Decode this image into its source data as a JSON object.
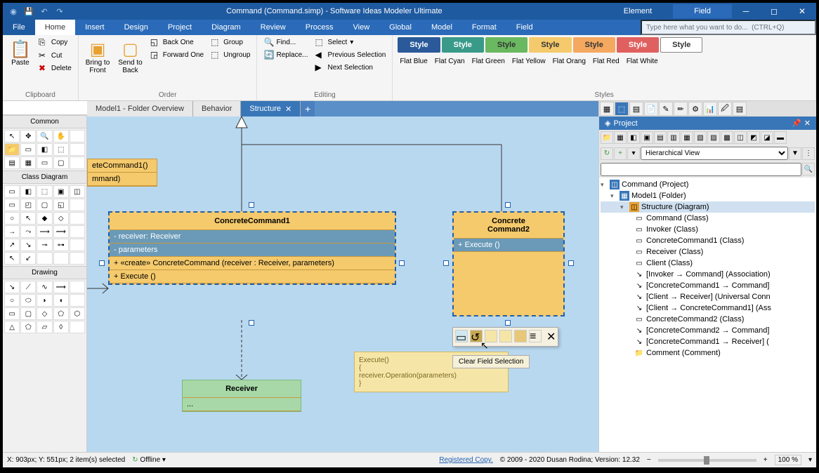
{
  "titlebar": {
    "title": "Command (Command.simp)  - Software Ideas Modeler Ultimate",
    "tab_element": "Element",
    "tab_field": "Field"
  },
  "menu": {
    "file": "File",
    "home": "Home",
    "insert": "Insert",
    "design": "Design",
    "project": "Project",
    "diagram": "Diagram",
    "review": "Review",
    "process": "Process",
    "view": "View",
    "global": "Global",
    "model": "Model",
    "format": "Format",
    "field": "Field",
    "search_placeholder": "Type here what you want to do...  (CTRL+Q)"
  },
  "ribbon": {
    "clipboard": {
      "label": "Clipboard",
      "paste": "Paste",
      "copy": "Copy",
      "cut": "Cut",
      "delete": "Delete"
    },
    "order": {
      "label": "Order",
      "bring_front": "Bring to\nFront",
      "send_back": "Send to\nBack",
      "back_one": "Back One",
      "forward_one": "Forward One",
      "group": "Group",
      "ungroup": "Ungroup"
    },
    "editing": {
      "label": "Editing",
      "find": "Find...",
      "replace": "Replace...",
      "select": "Select",
      "prev_sel": "Previous Selection",
      "next_sel": "Next Selection"
    },
    "styles": {
      "label": "Styles",
      "items": [
        {
          "text": "Style",
          "bg": "#2a5a9a",
          "fg": "#fff",
          "name": "Flat Blue"
        },
        {
          "text": "Style",
          "bg": "#3a9a8a",
          "fg": "#fff",
          "name": "Flat Cyan"
        },
        {
          "text": "Style",
          "bg": "#6ab860",
          "fg": "#333",
          "name": "Flat Green"
        },
        {
          "text": "Style",
          "bg": "#f5ca6c",
          "fg": "#333",
          "name": "Flat Yellow"
        },
        {
          "text": "Style",
          "bg": "#f5a860",
          "fg": "#333",
          "name": "Flat Orang"
        },
        {
          "text": "Style",
          "bg": "#e06060",
          "fg": "#fff",
          "name": "Flat Red"
        },
        {
          "text": "Style",
          "bg": "#ffffff",
          "fg": "#333",
          "name": "Flat White"
        }
      ]
    }
  },
  "leftpanel": {
    "common": "Common",
    "class_diagram": "Class Diagram",
    "drawing": "Drawing"
  },
  "tabs": {
    "model1": "Model1 - Folder Overview",
    "behavior": "Behavior",
    "structure": "Structure"
  },
  "canvas": {
    "partial": {
      "line1": "eteCommand1()",
      "line2": "mmand)"
    },
    "cc1": {
      "title": "ConcreteCommand1",
      "r1": "- receiver: Receiver",
      "r2": "- parameters",
      "r3": "+ «create» ConcreteCommand (receiver : Receiver, parameters)",
      "r4": "+ Execute ()"
    },
    "cc2": {
      "title": "Concrete\nCommand2",
      "r1": "+ Execute ()"
    },
    "receiver": {
      "title": "Receiver",
      "dots": "..."
    },
    "note": {
      "l1": "Execute()",
      "l2": "{",
      "l3": "    receiver.Operation(parameters)",
      "l4": "}"
    },
    "tooltip": "Clear Field Selection"
  },
  "project": {
    "title": "Project",
    "view_mode": "Hierarchical View",
    "tree": {
      "root": "Command (Project)",
      "model1": "Model1 (Folder)",
      "structure": "Structure (Diagram)",
      "items": [
        "Command (Class)",
        "Invoker (Class)",
        "ConcreteCommand1 (Class)",
        "Receiver (Class)",
        "Client (Class)",
        "[Invoker → Command] (Association)",
        "[ConcreteCommand1 → Command]",
        "[Client → Receiver] (Universal Conn",
        "[Client → ConcreteCommand1] (Ass",
        "ConcreteCommand2 (Class)",
        "[ConcreteCommand2 → Command]",
        "[ConcreteCommand1 → Receiver] (",
        "Comment (Comment)"
      ]
    }
  },
  "status": {
    "coords": "X: 903px; Y: 551px; 2 item(s) selected",
    "offline": "Offline",
    "registered": "Registered Copy.",
    "copyright": "© 2009 - 2020 Dusan Rodina; Version: 12.32",
    "zoom": "100 %"
  }
}
